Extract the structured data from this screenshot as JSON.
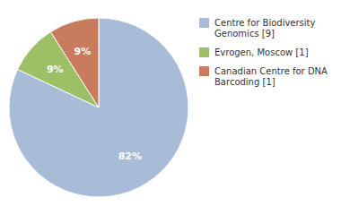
{
  "chart_data": {
    "type": "pie",
    "categories": [
      "Centre for Biodiversity\nGenomics [9]",
      "Evrogen, Moscow [1]",
      "Canadian Centre for DNA\nBarcoding [1]"
    ],
    "values": [
      82,
      9,
      9
    ],
    "value_labels": [
      "82%",
      "9%",
      "9%"
    ],
    "colors": [
      "#a8bcd8",
      "#9dc067",
      "#c97b5e"
    ],
    "data_labels": true,
    "legend": "right"
  }
}
